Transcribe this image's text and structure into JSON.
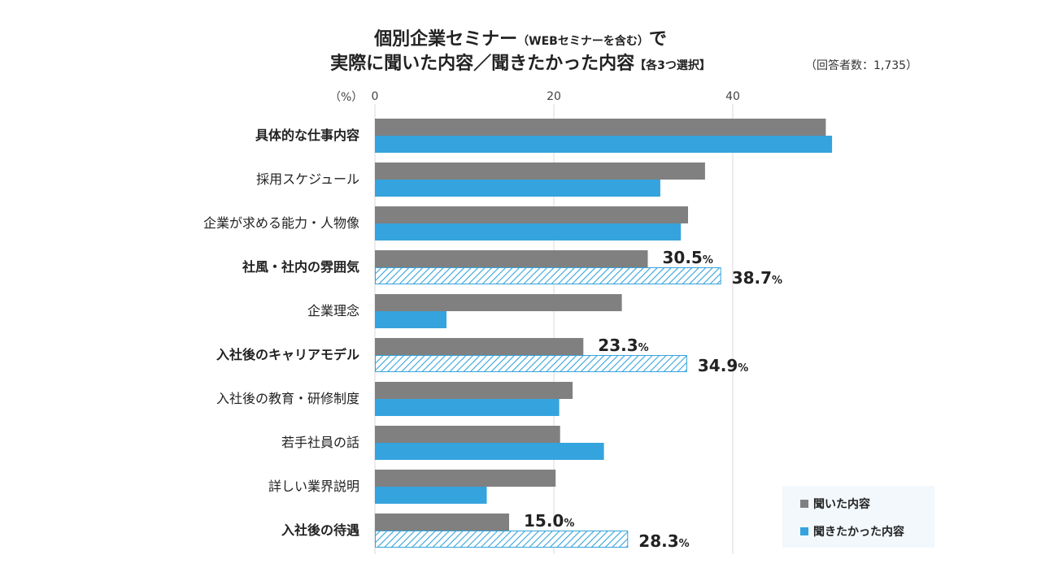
{
  "title": {
    "line1_main": "個別企業セミナー",
    "line1_paren": "（WEBセミナーを含む）",
    "line1_end": "で",
    "line2_main": "実際に聞いた内容／聞きたかった内容",
    "line2_bracket": "【各3つ選択】"
  },
  "respondents": "（回答者数：1,735）",
  "unit": "（%）",
  "legend": {
    "heard": "聞いた内容",
    "wanted": "聞きたかった内容"
  },
  "colors": {
    "heard": "#808080",
    "wanted": "#35a3dd",
    "grid": "#d9d9d9",
    "hatch_stroke": "#35a3dd"
  },
  "chart_data": {
    "type": "bar",
    "orientation": "horizontal",
    "xlim": [
      0,
      50
    ],
    "xticks": [
      0,
      20,
      40
    ],
    "categories": [
      "具体的な仕事内容",
      "採用スケジュール",
      "企業が求める能力・人物像",
      "社風・社内の雰囲気",
      "企業理念",
      "入社後のキャリアモデル",
      "入社後の教育・研修制度",
      "若手社員の話",
      "詳しい業界説明",
      "入社後の待遇"
    ],
    "bold_categories": [
      "具体的な仕事内容",
      "社風・社内の雰囲気",
      "入社後のキャリアモデル",
      "入社後の待遇"
    ],
    "hatched_categories": [
      "社風・社内の雰囲気",
      "入社後のキャリアモデル",
      "入社後の待遇"
    ],
    "series": [
      {
        "name": "聞いた内容",
        "key": "heard",
        "values": [
          50.4,
          36.9,
          35.0,
          30.5,
          27.6,
          23.3,
          22.1,
          20.7,
          20.2,
          15.0
        ]
      },
      {
        "name": "聞きたかった内容",
        "key": "wanted",
        "values": [
          51.1,
          31.9,
          34.2,
          38.7,
          8.0,
          34.9,
          20.6,
          25.6,
          12.5,
          28.3
        ]
      }
    ],
    "annotations": [
      {
        "category": "社風・社内の雰囲気",
        "series": "heard",
        "value": "30.5",
        "unit": "%"
      },
      {
        "category": "社風・社内の雰囲気",
        "series": "wanted",
        "value": "38.7",
        "unit": "%"
      },
      {
        "category": "入社後のキャリアモデル",
        "series": "heard",
        "value": "23.3",
        "unit": "%"
      },
      {
        "category": "入社後のキャリアモデル",
        "series": "wanted",
        "value": "34.9",
        "unit": "%"
      },
      {
        "category": "入社後の待遇",
        "series": "heard",
        "value": "15.0",
        "unit": "%"
      },
      {
        "category": "入社後の待遇",
        "series": "wanted",
        "value": "28.3",
        "unit": "%"
      }
    ],
    "legend_position": "bottom-right"
  }
}
